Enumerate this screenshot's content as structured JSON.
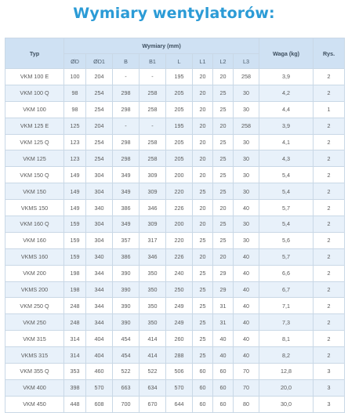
{
  "title": "Wymiary wentylatorów:",
  "table": {
    "header": {
      "typ": "Typ",
      "wymiary": "Wymiary (mm)",
      "waga": "Waga (kg)",
      "rys": "Rys.",
      "dims": [
        "ØD",
        "ØD1",
        "B",
        "B1",
        "L",
        "L1",
        "L2",
        "L3"
      ]
    },
    "rows": [
      [
        "VKM 100 E",
        "100",
        "204",
        "-",
        "-",
        "195",
        "20",
        "20",
        "258",
        "3,9",
        "2"
      ],
      [
        "VKM 100 Q",
        "98",
        "254",
        "298",
        "258",
        "205",
        "20",
        "25",
        "30",
        "4,2",
        "2"
      ],
      [
        "VKM 100",
        "98",
        "254",
        "298",
        "258",
        "205",
        "20",
        "25",
        "30",
        "4,4",
        "1"
      ],
      [
        "VKM 125 E",
        "125",
        "204",
        "-",
        "-",
        "195",
        "20",
        "20",
        "258",
        "3,9",
        "2"
      ],
      [
        "VKM 125 Q",
        "123",
        "254",
        "298",
        "258",
        "205",
        "20",
        "25",
        "30",
        "4,1",
        "2"
      ],
      [
        "VKM 125",
        "123",
        "254",
        "298",
        "258",
        "205",
        "20",
        "25",
        "30",
        "4,3",
        "2"
      ],
      [
        "VKM 150 Q",
        "149",
        "304",
        "349",
        "309",
        "200",
        "20",
        "25",
        "30",
        "5,4",
        "2"
      ],
      [
        "VKM 150",
        "149",
        "304",
        "349",
        "309",
        "220",
        "25",
        "25",
        "30",
        "5,4",
        "2"
      ],
      [
        "VKMS 150",
        "149",
        "340",
        "386",
        "346",
        "226",
        "20",
        "20",
        "40",
        "5,7",
        "2"
      ],
      [
        "VKM 160 Q",
        "159",
        "304",
        "349",
        "309",
        "200",
        "20",
        "25",
        "30",
        "5,4",
        "2"
      ],
      [
        "VKM 160",
        "159",
        "304",
        "357",
        "317",
        "220",
        "25",
        "25",
        "30",
        "5,6",
        "2"
      ],
      [
        "VKMS 160",
        "159",
        "340",
        "386",
        "346",
        "226",
        "20",
        "20",
        "40",
        "5,7",
        "2"
      ],
      [
        "VKM 200",
        "198",
        "344",
        "390",
        "350",
        "240",
        "25",
        "29",
        "40",
        "6,6",
        "2"
      ],
      [
        "VKMS 200",
        "198",
        "344",
        "390",
        "350",
        "250",
        "25",
        "29",
        "40",
        "6,7",
        "2"
      ],
      [
        "VKM 250 Q",
        "248",
        "344",
        "390",
        "350",
        "249",
        "25",
        "31",
        "40",
        "7,1",
        "2"
      ],
      [
        "VKM 250",
        "248",
        "344",
        "390",
        "350",
        "249",
        "25",
        "31",
        "40",
        "7,3",
        "2"
      ],
      [
        "VKM 315",
        "314",
        "404",
        "454",
        "414",
        "260",
        "25",
        "40",
        "40",
        "8,1",
        "2"
      ],
      [
        "VKMS 315",
        "314",
        "404",
        "454",
        "414",
        "288",
        "25",
        "40",
        "40",
        "8,2",
        "2"
      ],
      [
        "VKM 355 Q",
        "353",
        "460",
        "522",
        "522",
        "506",
        "60",
        "60",
        "70",
        "12,8",
        "3"
      ],
      [
        "VKM 400",
        "398",
        "570",
        "663",
        "634",
        "570",
        "60",
        "60",
        "70",
        "20,0",
        "3"
      ],
      [
        "VKM 450",
        "448",
        "608",
        "700",
        "670",
        "644",
        "60",
        "60",
        "80",
        "30,0",
        "3"
      ]
    ]
  },
  "colors": {
    "title": "#2b9bd6",
    "header_bg": "#cfe1f3",
    "stripe_bg": "#e8f1fa",
    "border": "#c9d8e6"
  }
}
